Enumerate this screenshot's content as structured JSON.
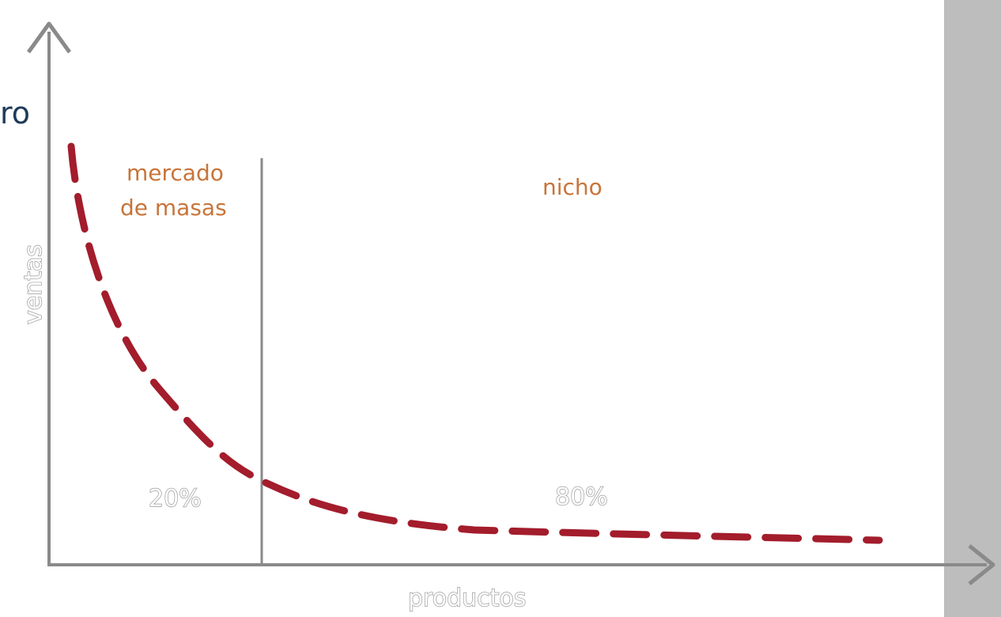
{
  "diagram": {
    "partial_text": "ro",
    "x_axis_label": "productos",
    "y_axis_label": "ventas",
    "left_region": {
      "label_line1": "mercado",
      "label_line2": "de masas",
      "percent": "20%"
    },
    "right_region": {
      "label": "nicho",
      "percent": "80%"
    },
    "curve_color": "#a31d2c",
    "label_color": "#c8743a",
    "axis_color": "#8a8a8a"
  }
}
